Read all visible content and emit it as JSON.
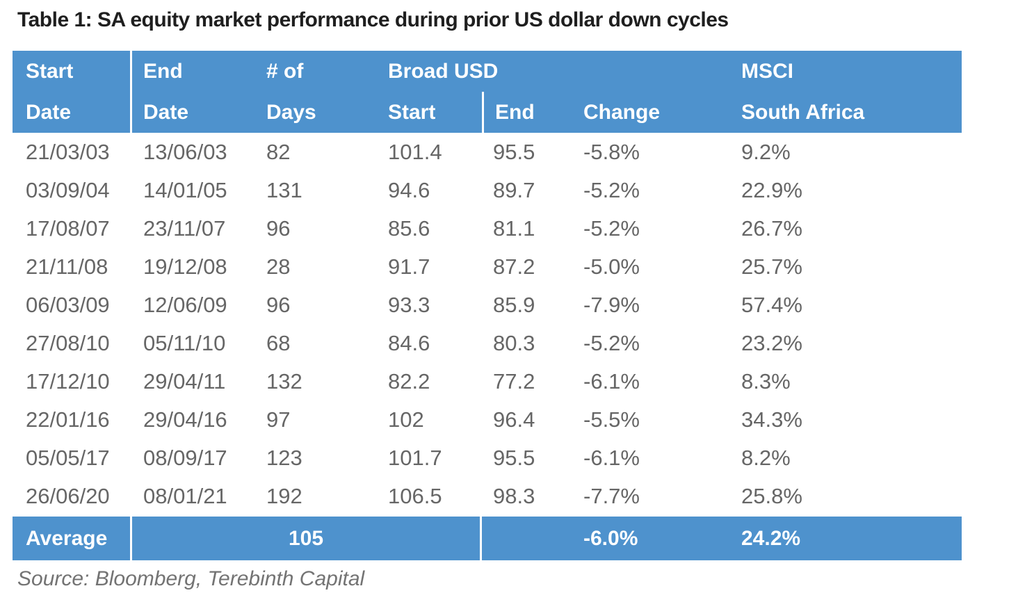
{
  "title": "Table 1: SA equity market performance during prior US dollar down cycles",
  "source_note": "Source: Bloomberg, Terebinth Capital",
  "colors": {
    "header_blue": "#4e92cd",
    "header_text": "#ffffff",
    "body_text": "#666666",
    "title_text": "#1f1f1f",
    "source_text": "#737373"
  },
  "table": {
    "header": {
      "col1_line1": "Start",
      "col1_line2": "Date",
      "col2_line1": "End",
      "col2_line2": "Date",
      "col3_line1": "# of",
      "col3_line2": "Days",
      "group_broad_usd": "Broad USD",
      "broad_usd_start": "Start",
      "broad_usd_end": "End",
      "broad_usd_change": "Change",
      "group_msci": "MSCI",
      "msci_line2": "South Africa"
    },
    "rows": [
      {
        "start_date": "21/03/03",
        "end_date": "13/06/03",
        "days": "82",
        "usd_start": "101.4",
        "usd_end": "95.5",
        "change": "-5.8%",
        "msci": "9.2%"
      },
      {
        "start_date": "03/09/04",
        "end_date": "14/01/05",
        "days": "131",
        "usd_start": "94.6",
        "usd_end": "89.7",
        "change": "-5.2%",
        "msci": "22.9%"
      },
      {
        "start_date": "17/08/07",
        "end_date": "23/11/07",
        "days": "96",
        "usd_start": "85.6",
        "usd_end": "81.1",
        "change": "-5.2%",
        "msci": "26.7%"
      },
      {
        "start_date": "21/11/08",
        "end_date": "19/12/08",
        "days": "28",
        "usd_start": "91.7",
        "usd_end": "87.2",
        "change": "-5.0%",
        "msci": "25.7%"
      },
      {
        "start_date": "06/03/09",
        "end_date": "12/06/09",
        "days": "96",
        "usd_start": "93.3",
        "usd_end": "85.9",
        "change": "-7.9%",
        "msci": "57.4%"
      },
      {
        "start_date": "27/08/10",
        "end_date": "05/11/10",
        "days": "68",
        "usd_start": "84.6",
        "usd_end": "80.3",
        "change": "-5.2%",
        "msci": "23.2%"
      },
      {
        "start_date": "17/12/10",
        "end_date": "29/04/11",
        "days": "132",
        "usd_start": "82.2",
        "usd_end": "77.2",
        "change": "-6.1%",
        "msci": "8.3%"
      },
      {
        "start_date": "22/01/16",
        "end_date": "29/04/16",
        "days": "97",
        "usd_start": "102",
        "usd_end": "96.4",
        "change": "-5.5%",
        "msci": "34.3%"
      },
      {
        "start_date": "05/05/17",
        "end_date": "08/09/17",
        "days": "123",
        "usd_start": "101.7",
        "usd_end": "95.5",
        "change": "-6.1%",
        "msci": "8.2%"
      },
      {
        "start_date": "26/06/20",
        "end_date": "08/01/21",
        "days": "192",
        "usd_start": "106.5",
        "usd_end": "98.3",
        "change": "-7.7%",
        "msci": "25.8%"
      }
    ],
    "average": {
      "label": "Average",
      "days_avg": "105",
      "change_avg": "-6.0%",
      "msci_avg": "24.2%"
    }
  },
  "chart_data": {
    "type": "table",
    "title": "Table 1: SA equity market performance during prior US dollar down cycles",
    "columns": [
      "Start Date",
      "End Date",
      "# of Days",
      "Broad USD Start",
      "Broad USD End",
      "Broad USD Change",
      "MSCI South Africa"
    ],
    "rows": [
      [
        "21/03/03",
        "13/06/03",
        82,
        101.4,
        95.5,
        "-5.8%",
        "9.2%"
      ],
      [
        "03/09/04",
        "14/01/05",
        131,
        94.6,
        89.7,
        "-5.2%",
        "22.9%"
      ],
      [
        "17/08/07",
        "23/11/07",
        96,
        85.6,
        81.1,
        "-5.2%",
        "26.7%"
      ],
      [
        "21/11/08",
        "19/12/08",
        28,
        91.7,
        87.2,
        "-5.0%",
        "25.7%"
      ],
      [
        "06/03/09",
        "12/06/09",
        96,
        93.3,
        85.9,
        "-7.9%",
        "57.4%"
      ],
      [
        "27/08/10",
        "05/11/10",
        68,
        84.6,
        80.3,
        "-5.2%",
        "23.2%"
      ],
      [
        "17/12/10",
        "29/04/11",
        132,
        82.2,
        77.2,
        "-6.1%",
        "8.3%"
      ],
      [
        "22/01/16",
        "29/04/16",
        97,
        102,
        96.4,
        "-5.5%",
        "34.3%"
      ],
      [
        "05/05/17",
        "08/09/17",
        123,
        101.7,
        95.5,
        "-6.1%",
        "8.2%"
      ],
      [
        "26/06/20",
        "08/01/21",
        192,
        106.5,
        98.3,
        "-7.7%",
        "25.8%"
      ]
    ],
    "average_row": {
      "label": "Average",
      "days": 105,
      "broad_usd_change": "-6.0%",
      "msci_south_africa": "24.2%"
    },
    "source": "Bloomberg, Terebinth Capital"
  }
}
